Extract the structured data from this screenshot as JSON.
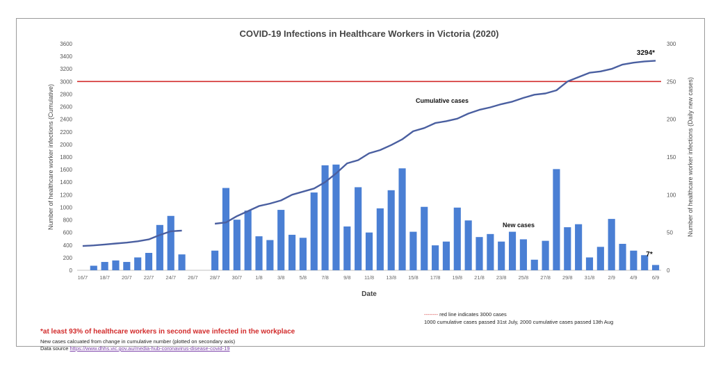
{
  "chart_data": {
    "type": "bar+line",
    "title": "COVID-19 Infections in Healthcare Workers in Victoria (2020)",
    "xlabel": "Date",
    "ylabel_left": "Number of healthcare worker infections (Cumulative)",
    "ylabel_right": "Number of healthcare worker infections (Daily new cases)",
    "ylim_left": [
      0,
      3600
    ],
    "ylim_right": [
      0,
      300
    ],
    "left_ticks": [
      0,
      200,
      400,
      600,
      800,
      1000,
      1200,
      1400,
      1600,
      1800,
      2000,
      2200,
      2400,
      2600,
      2800,
      3000,
      3200,
      3400,
      3600
    ],
    "right_ticks": [
      0,
      50,
      100,
      150,
      200,
      250,
      300
    ],
    "x_tick_labels": [
      "16/7",
      "18/7",
      "20/7",
      "22/7",
      "24/7",
      "26/7",
      "28/7",
      "30/7",
      "1/8",
      "3/8",
      "5/8",
      "7/8",
      "9/8",
      "11/8",
      "13/8",
      "15/8",
      "17/8",
      "19/8",
      "21/8",
      "23/8",
      "25/8",
      "27/8",
      "29/8",
      "31/8",
      "2/9",
      "4/9",
      "6/9"
    ],
    "reference_line": {
      "value": 3000,
      "axis": "left",
      "color": "#d22b2b"
    },
    "bar_color": "#4a7fd4",
    "line_color": "#4a5fa0",
    "series": [
      {
        "name": "New cases",
        "type": "bar",
        "axis": "right",
        "values": [
          null,
          6,
          11,
          13,
          11,
          17,
          23,
          60,
          72,
          21,
          null,
          null,
          26,
          109,
          67,
          79,
          45,
          40,
          80,
          47,
          43,
          103,
          139,
          140,
          58,
          110,
          50,
          82,
          106,
          135,
          51,
          84,
          33,
          38,
          83,
          66,
          44,
          48,
          38,
          51,
          41,
          14,
          39,
          134,
          57,
          61,
          17,
          31,
          68,
          35,
          26,
          20,
          7
        ]
      },
      {
        "name": "Cumulative cases",
        "type": "line",
        "axis": "left",
        "values": [
          385,
          395,
          410,
          425,
          440,
          460,
          490,
          560,
          620,
          630,
          null,
          null,
          740,
          760,
          860,
          940,
          1020,
          1060,
          1110,
          1200,
          1250,
          1300,
          1400,
          1540,
          1700,
          1750,
          1860,
          1910,
          1990,
          2080,
          2210,
          2260,
          2340,
          2370,
          2410,
          2490,
          2550,
          2590,
          2640,
          2680,
          2740,
          2790,
          2810,
          2860,
          3000,
          3070,
          3140,
          3160,
          3200,
          3270,
          3300,
          3320,
          3330
        ]
      }
    ],
    "annotations": {
      "cumulative_label": "Cumulative cases",
      "new_cases_label": "New cases",
      "end_cumulative": "3294*",
      "end_new": "7*"
    }
  },
  "footer": {
    "red_note": "*at least 93% of healthcare workers in second wave infected in the workplace",
    "calc_note": "New cases calcuated from change in cumulative number (plotted on secondary axis)",
    "source_prefix": "Data source ",
    "source_link": "https://www.dhhs.vic.gov.au/media-hub-coronavirus-disease-covid-19",
    "legend_dashes": "--------",
    "legend_red_text": " red line indicates 3000 cases",
    "legend_milestones": "1000 cumulative cases passed 31st July, 2000 cumulative cases passed 13th Aug"
  }
}
